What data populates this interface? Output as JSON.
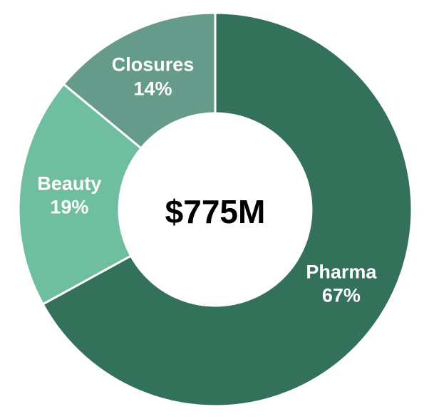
{
  "page": {
    "background_color": "#FFFFFF"
  },
  "chart_data": {
    "type": "pie",
    "subtype": "donut",
    "title": "",
    "center_label": "$775M",
    "start_angle_deg": 0,
    "direction": "clockwise",
    "inner_radius_ratio": 0.489,
    "divider_color": "#FFFFFF",
    "divider_width": 3,
    "segment_label_color": "#FFFFFF",
    "center_label_color": "#000000",
    "legend": "none",
    "segments": [
      {
        "label": "Pharma",
        "value_pct": 67,
        "display_pct": "67%",
        "color": "#34715A"
      },
      {
        "label": "Beauty",
        "value_pct": 19,
        "display_pct": "19%",
        "color": "#6FBEA0"
      },
      {
        "label": "Closures",
        "value_pct": 14,
        "display_pct": "14%",
        "color": "#669A8B"
      }
    ]
  }
}
